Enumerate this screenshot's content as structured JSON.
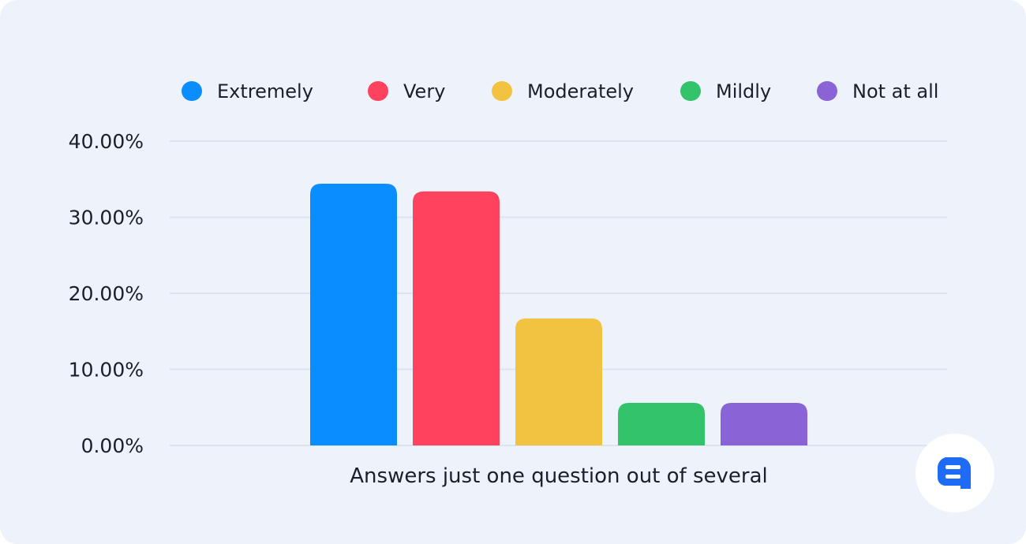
{
  "chart_data": {
    "type": "bar",
    "categories": [
      "Answers just one question out of several"
    ],
    "series": [
      {
        "name": "Extremely",
        "values": [
          34.4
        ],
        "color": "#0a8dff"
      },
      {
        "name": "Very",
        "values": [
          33.4
        ],
        "color": "#ff435f"
      },
      {
        "name": "Moderately",
        "values": [
          16.7
        ],
        "color": "#f2c241"
      },
      {
        "name": "Mildly",
        "values": [
          5.6
        ],
        "color": "#33c36a"
      },
      {
        "name": "Not at all",
        "values": [
          5.6
        ],
        "color": "#8a63d7"
      }
    ],
    "yticks": [
      0,
      10,
      20,
      30,
      40
    ],
    "ytick_labels": [
      "0.00%",
      "10.00%",
      "20.00%",
      "30.00%",
      "40.00%"
    ],
    "ylim": [
      0,
      40
    ],
    "grid": true,
    "legend_position": "top",
    "xlabel": "",
    "ylabel": ""
  },
  "branding": {
    "logo_icon": "brand-logo-icon",
    "logo_color": "#1e6cf5"
  }
}
